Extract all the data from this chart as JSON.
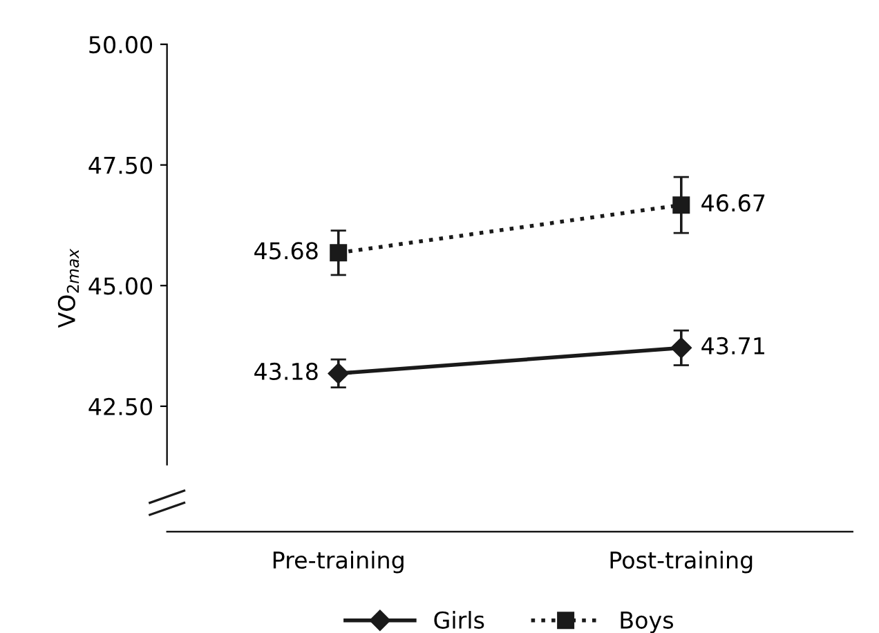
{
  "chart_data": {
    "type": "line",
    "ylabel": "VO$_{2max}$",
    "categories": [
      "Pre-training",
      "Post-training"
    ],
    "series": [
      {
        "name": "Girls",
        "color": "#1a1a1a",
        "values": [
          43.18,
          43.71
        ],
        "errors": [
          0.29,
          0.36
        ],
        "marker": "diamond",
        "line_style": "solid"
      },
      {
        "name": "Boys",
        "color": "#1a1a1a",
        "values": [
          45.68,
          46.67
        ],
        "errors": [
          0.46,
          0.58
        ],
        "marker": "square",
        "line_style": "dotted"
      }
    ],
    "ylim": [
      39.9,
      50.0
    ],
    "yticks": [
      {
        "value": 42.5,
        "label": "42.50"
      },
      {
        "value": 45,
        "label": "45.00"
      },
      {
        "value": 47.5,
        "label": "47.50"
      },
      {
        "value": 50,
        "label": "50.00"
      }
    ],
    "data_labels": true,
    "grid": false,
    "legend": "bottom"
  }
}
